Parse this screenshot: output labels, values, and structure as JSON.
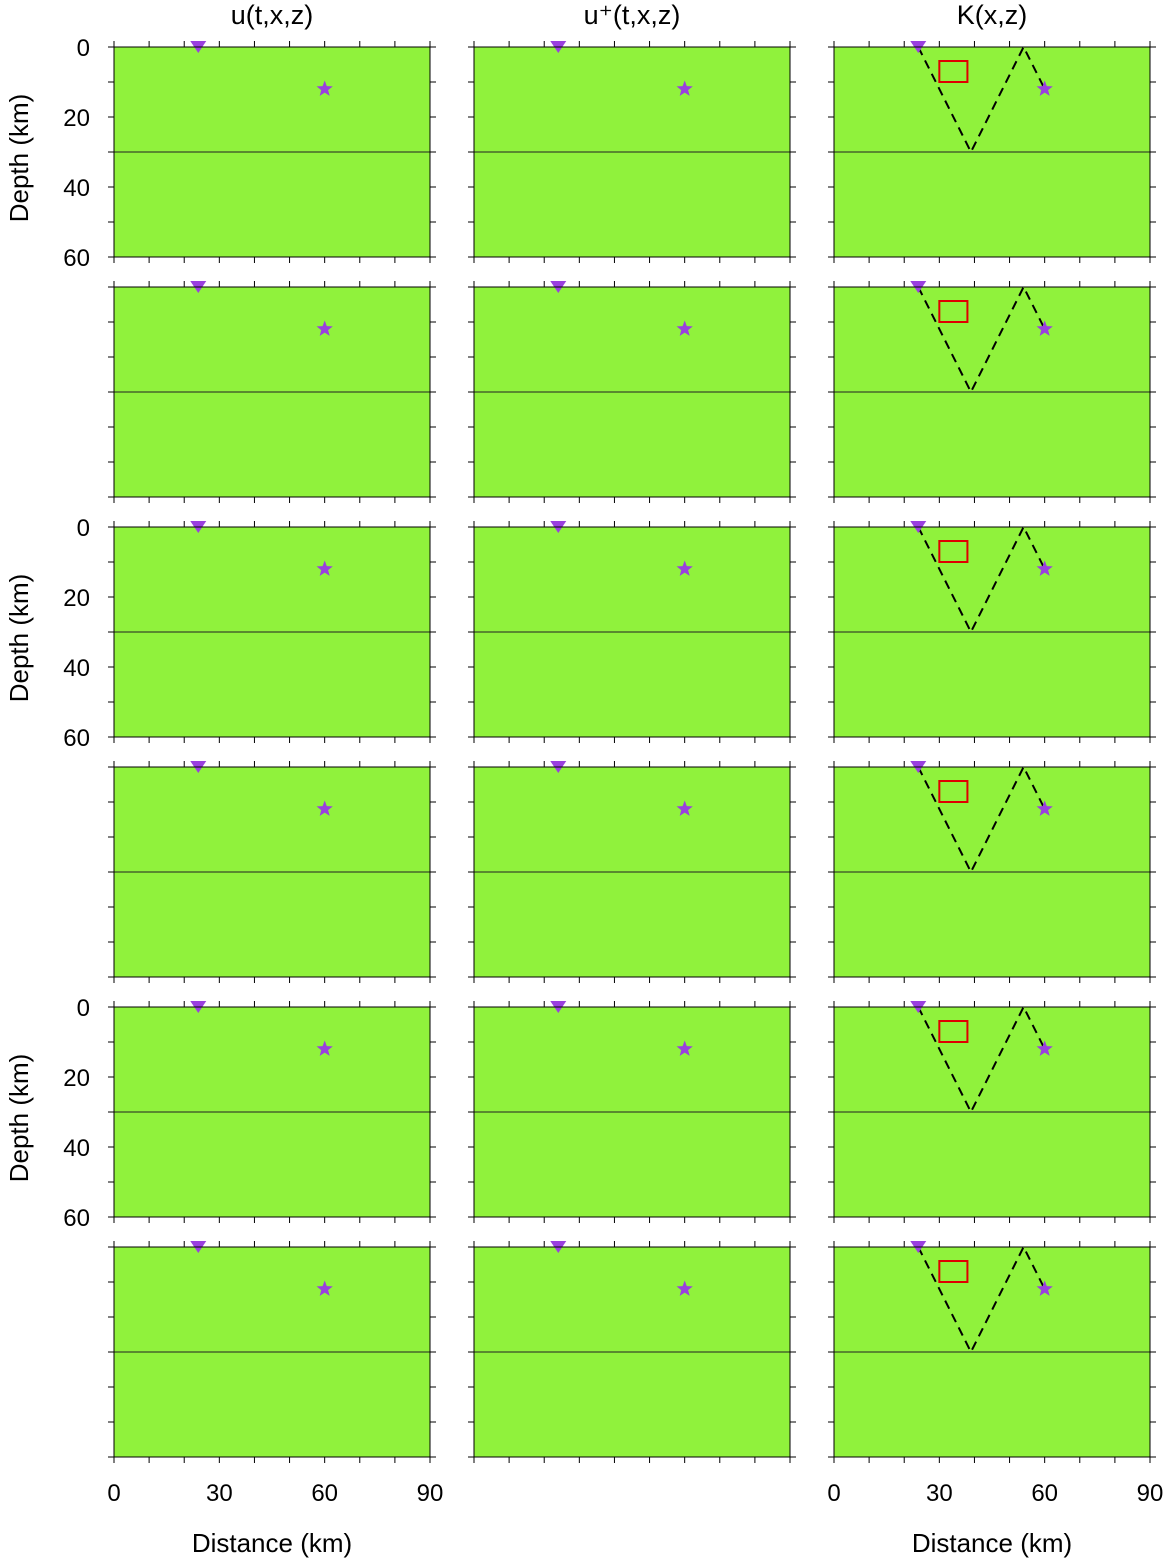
{
  "columns": [
    {
      "title": "u(t,x,z)"
    },
    {
      "title": "u⁺(t,x,z)"
    },
    {
      "title": "K(x,z)"
    }
  ],
  "axes": {
    "ylabel": "Depth (km)",
    "xlabel": "Distance (km)",
    "yticks": [
      "0",
      "20",
      "40",
      "60"
    ],
    "xticks": [
      "0",
      "30",
      "60",
      "90"
    ],
    "depth_range_km": [
      0,
      60
    ],
    "distance_range_km": [
      0,
      90
    ],
    "interface_depth_km": 30
  },
  "markers": {
    "receiver": {
      "icon": "inverted-triangle-icon",
      "x_km": 24,
      "z_km": 0
    },
    "source": {
      "icon": "star-icon",
      "x_km": 60,
      "z_km": 12
    },
    "target_box": {
      "x_km": [
        30,
        38
      ],
      "z_km": [
        4,
        10
      ]
    },
    "ray_path_km": [
      [
        24,
        0
      ],
      [
        39,
        30
      ],
      [
        54,
        0
      ],
      [
        60,
        12
      ]
    ]
  },
  "colors": {
    "background": "#90f23c",
    "positive": "#e00000",
    "negative": "#0010e0",
    "marker": "#9a3fe0",
    "box": "#e00000"
  },
  "rows": 6
}
